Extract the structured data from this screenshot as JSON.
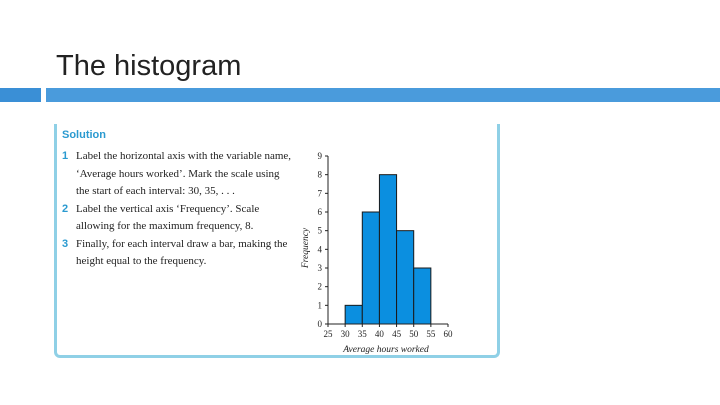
{
  "slide": {
    "title": "The histogram"
  },
  "solution": {
    "heading": "Solution",
    "steps": [
      {
        "number": "1",
        "text": "Label the horizontal axis with the variable name, ‘Average hours worked’. Mark the scale using the start of each interval: 30, 35, . . ."
      },
      {
        "number": "2",
        "text": "Label the vertical axis ‘Frequency’. Scale allowing for the maximum frequency, 8."
      },
      {
        "number": "3",
        "text": "Finally, for each interval draw a bar, making the height equal to the frequency."
      }
    ]
  },
  "colors": {
    "accent": "#4a9bdc",
    "accent_dark": "#3a8fd6",
    "box_border": "#8fd0e6",
    "bar_fill": "#0b8fe0",
    "heading": "#2a9ad0"
  },
  "chart_data": {
    "type": "bar",
    "title": "",
    "xlabel": "Average hours worked",
    "ylabel": "Frequency",
    "bins": [
      [
        30,
        35
      ],
      [
        35,
        40
      ],
      [
        40,
        45
      ],
      [
        45,
        50
      ],
      [
        50,
        55
      ]
    ],
    "values": [
      1,
      6,
      8,
      5,
      3
    ],
    "xlim": [
      25,
      60
    ],
    "ylim": [
      0,
      9
    ],
    "xticks": [
      "25",
      "30",
      "35",
      "40",
      "45",
      "50",
      "55",
      "60"
    ],
    "yticks": [
      "0",
      "1",
      "2",
      "3",
      "4",
      "5",
      "6",
      "7",
      "8",
      "9"
    ],
    "grid": false,
    "legend": "none"
  }
}
